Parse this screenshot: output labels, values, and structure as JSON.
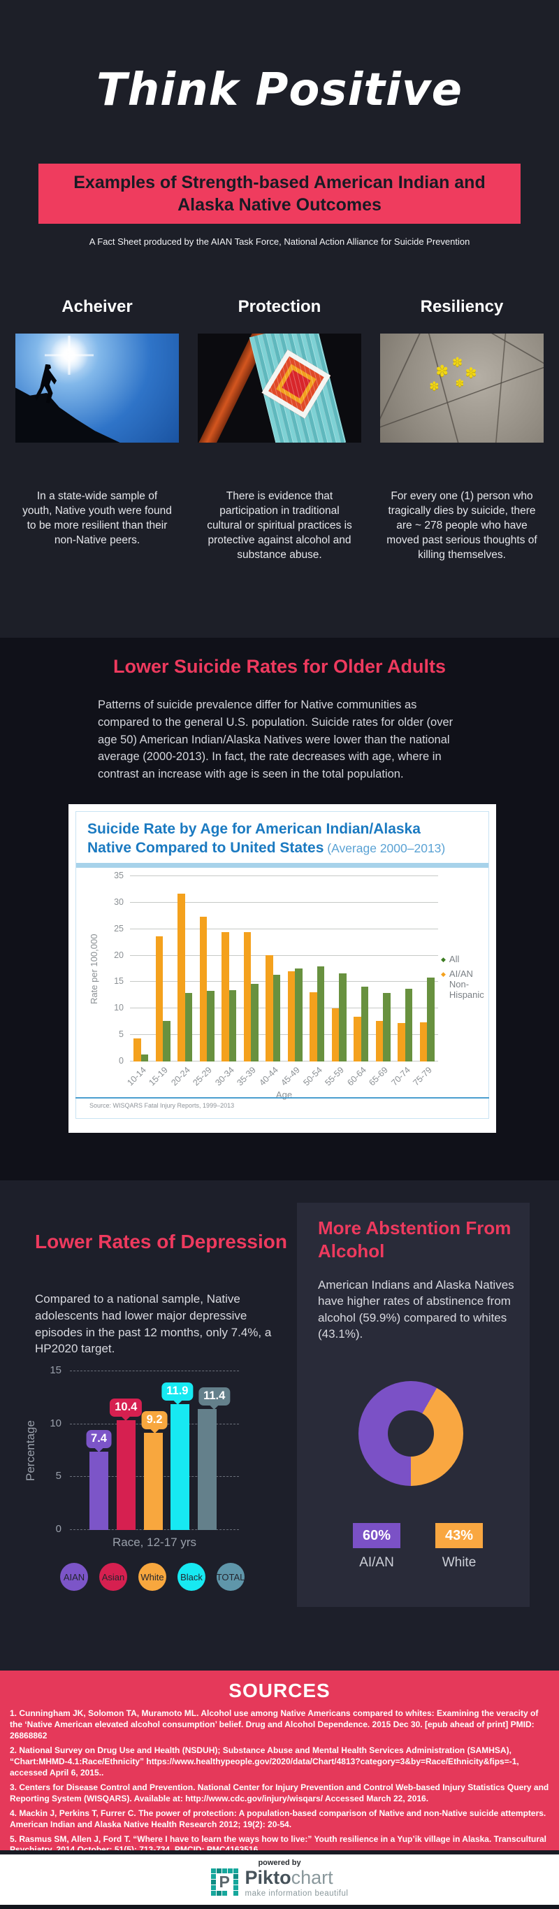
{
  "colors": {
    "page_dark": "#1d1f28",
    "section_darker": "#101119",
    "accent_pink": "#ee3a5e",
    "banner_red": "#ef3c5e",
    "sources_red": "#e5395a",
    "card_bg": "#292b39",
    "chart_blue": "#1b7ac1",
    "brand_teal": "#16a79c"
  },
  "header": {
    "title": "Think Positive",
    "banner": "Examples of Strength-based American Indian and Alaska Native Outcomes",
    "subtitle": "A Fact Sheet produced by the AIAN Task Force, National Action Alliance for Suicide Prevention"
  },
  "columns": [
    {
      "heading": "Acheiver",
      "image": "climber-silhouette-photo",
      "text": "In a state-wide sample of youth, Native youth were found to be more resilient than their non-Native peers."
    },
    {
      "heading": "Protection",
      "image": "native-beadwork-photo",
      "text": "There is evidence that participation in traditional cultural or spiritual practices is protective against alcohol and substance abuse."
    },
    {
      "heading": "Resiliency",
      "image": "flowers-in-cracked-earth-photo",
      "text": "For every one (1) person who tragically dies by suicide, there are ~ 278 people who have moved past serious thoughts of killing themselves."
    }
  ],
  "suicide_section": {
    "heading": "Lower Suicide Rates for Older Adults",
    "paragraph": "Patterns of suicide prevalence differ for Native communities as compared to the general U.S. population.  Suicide rates for older (over age 50) American Indian/Alaska Natives were lower than the national average (2000-2013).   In fact, the rate decreases with age, where in contrast an increase with age is seen in the total population."
  },
  "depression": {
    "heading": "Lower Rates of Depression",
    "paragraph": "Compared to a national sample, Native adolescents had lower major depressive episodes in the past 12 months, only 7.4%, a HP2020 target."
  },
  "abstention": {
    "heading": "More  Abstention From\nAlcohol",
    "paragraph": "American Indians and Alaska Natives have higher rates of abstinence from alcohol (59.9%) compared to whites (43.1%)."
  },
  "chart_data": [
    {
      "id": "suicide-by-age",
      "type": "bar",
      "title": "Suicide Rate by Age for American Indian/Alaska Native Compared to United States",
      "title_line1": "Suicide Rate by Age for American Indian/Alaska",
      "title_line2": "Native Compared to United States",
      "title_suffix": " (Average 2000–2013)",
      "xlabel": "Age",
      "ylabel": "Rate per 100,000",
      "ylim": [
        0,
        35
      ],
      "yticks": [
        0,
        5,
        10,
        15,
        20,
        25,
        30,
        35
      ],
      "grid": true,
      "legend_position": "right",
      "categories": [
        "10-14",
        "15-19",
        "20-24",
        "25-29",
        "30-34",
        "35-39",
        "40-44",
        "45-49",
        "50-54",
        "55-59",
        "60-64",
        "65-69",
        "70-74",
        "75-79"
      ],
      "series": [
        {
          "name": "AI/AN Non-Hispanic",
          "color": "#f4a11d",
          "values": [
            4.4,
            23.6,
            31.7,
            27.4,
            24.4,
            24.5,
            20.1,
            17.0,
            13.1,
            10.0,
            8.4,
            7.7,
            7.3,
            7.4
          ]
        },
        {
          "name": "All",
          "color": "#68913f",
          "values": [
            1.3,
            7.7,
            12.9,
            13.3,
            13.5,
            14.7,
            16.4,
            17.6,
            17.9,
            16.6,
            14.2,
            13.0,
            13.8,
            15.8
          ]
        }
      ],
      "legend": [
        {
          "label": "All",
          "color": "#3c7c21"
        },
        {
          "label": "AI/AN Non-Hispanic",
          "color": "#f4a11d"
        }
      ],
      "source": "Source: WISQARS Fatal Injury Reports, 1999–2013"
    },
    {
      "id": "depression-by-race",
      "type": "bar",
      "categories": [
        "AIAN",
        "Asian",
        "White",
        "Black",
        "TOTAL"
      ],
      "values": [
        7.4,
        10.4,
        9.2,
        11.9,
        11.4
      ],
      "bar_colors": [
        "#7c55c8",
        "#d62050",
        "#f8a73e",
        "#17e9f2",
        "#64808b"
      ],
      "legend_colors": [
        "#7c55c8",
        "#d62050",
        "#f8a73e",
        "#17e9f2",
        "#5f96aa"
      ],
      "xlabel": "Race, 12-17 yrs",
      "ylabel": "Percentage",
      "ylim": [
        0,
        15
      ],
      "yticks": [
        0,
        5,
        10,
        15
      ],
      "grid": "dashed"
    },
    {
      "id": "alcohol-abstinence",
      "type": "pie",
      "donut": true,
      "slices": [
        {
          "label": "AI/AN",
          "display": "60%",
          "value": 60,
          "color": "#7b51c6"
        },
        {
          "label": "White",
          "display": "43%",
          "value": 43,
          "color": "#f9a741"
        }
      ]
    }
  ],
  "sources": {
    "heading": "SOURCES",
    "items": [
      "1. Cunningham JK, Solomon TA, Muramoto ML. Alcohol use among Native Americans compared to whites: Examining the veracity of the ‘Native American elevated alcohol consumption’ belief. Drug and Alcohol Dependence. 2015 Dec 30. [epub ahead of print] PMID: 26868862",
      "2.  National Survey on Drug Use and Health (NSDUH); Substance Abuse and Mental Health Services Administration (SAMHSA), “Chart:MHMD-4.1:Race/Ethnicity” https://www.healthypeople.gov/2020/data/Chart/4813?category=3&by=Race/Ethnicity&fips=-1, accessed April 6, 2015..",
      "3.  Centers for Disease Control and Prevention. National Center for Injury Prevention and Control Web-based Injury Statistics Query and Reporting System (WISQARS). Available at:  http://www.cdc.gov/injury/wisqars/  Accessed March 22, 2016.",
      "4. Mackin J, Perkins T, Furrer C. The power of protection:  A population-based comparison of Native and non-Native suicide attempters. American Indian and Alaska Native Health Research 2012; 19(2): 20-54.",
      "5.  Rasmus SM, Allen J, Ford T. “Where I have to learn the ways how to live:” Youth resilience in a Yup’ik village in Alaska. Transcultural Psychiatry. 2014 October; 51(5): 713-734. PMCID: PMC4163516."
    ]
  },
  "footer": {
    "powered_by": "powered by",
    "brand_bold": "Pikto",
    "brand_light": "chart",
    "logo_glyph": "P",
    "tagline": "make information beautiful"
  },
  "icons": {
    "legend_marker": "diamond",
    "flower_glyph": "✽"
  }
}
